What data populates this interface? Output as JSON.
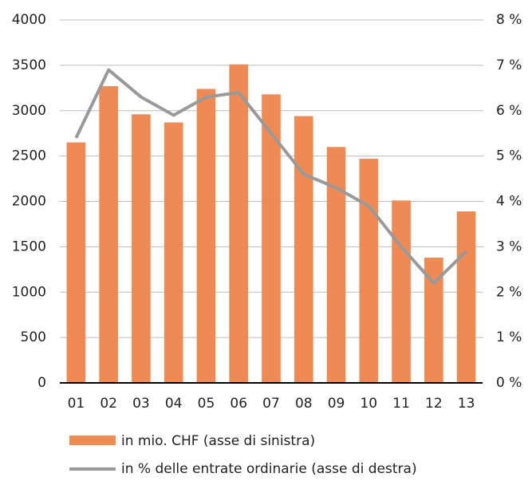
{
  "chart_data": {
    "type": "bar-line",
    "categories": [
      "01",
      "02",
      "03",
      "04",
      "05",
      "06",
      "07",
      "08",
      "09",
      "10",
      "11",
      "12",
      "13"
    ],
    "series": [
      {
        "name": "in mio. CHF (asse di sinistra)",
        "type": "bar",
        "color": "#f08a55",
        "axis": "y",
        "values": [
          2650,
          3270,
          2960,
          2870,
          3240,
          3510,
          3180,
          2940,
          2600,
          2470,
          2010,
          1380,
          1890
        ]
      },
      {
        "name": "in % delle entrate ordinarie (asse di destra)",
        "type": "line",
        "color": "#999999",
        "axis": "y2",
        "values": [
          5.4,
          6.9,
          6.3,
          5.9,
          6.3,
          6.4,
          5.5,
          4.6,
          4.3,
          3.9,
          3.0,
          2.2,
          2.9
        ]
      }
    ],
    "ylim": [
      0,
      4000
    ],
    "yticks": [
      0,
      500,
      1000,
      1500,
      2000,
      2500,
      3000,
      3500,
      4000
    ],
    "y2lim": [
      0,
      8
    ],
    "y2ticks": [
      {
        "value": 0,
        "label": "0 %"
      },
      {
        "value": 1,
        "label": "1 %"
      },
      {
        "value": 2,
        "label": "2 %"
      },
      {
        "value": 3,
        "label": "3 %"
      },
      {
        "value": 4,
        "label": "4 %"
      },
      {
        "value": 5,
        "label": "5 %"
      },
      {
        "value": 6,
        "label": "6 %"
      },
      {
        "value": 7,
        "label": "7 %"
      },
      {
        "value": 8,
        "label": "8 %"
      }
    ],
    "grid": true,
    "legend": "bottom"
  }
}
